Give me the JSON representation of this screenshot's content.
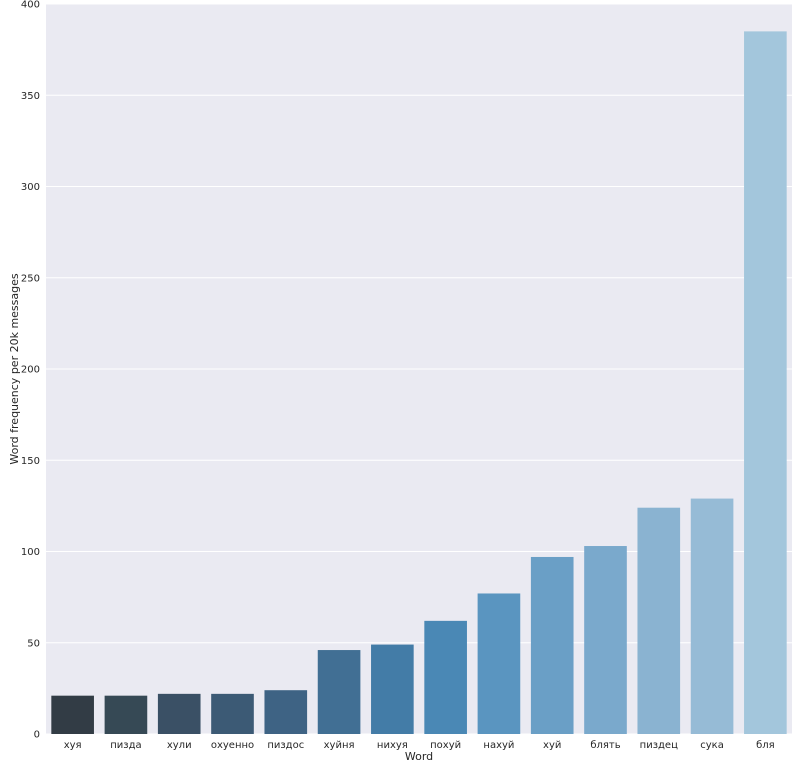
{
  "chart_data": {
    "type": "bar",
    "title": "",
    "xlabel": "Word",
    "ylabel": "Word frequency per 20k messages",
    "categories": [
      "хуя",
      "пизда",
      "хули",
      "охуенно",
      "пиздос",
      "хуйня",
      "нихуя",
      "похуй",
      "нахуй",
      "хуй",
      "блять",
      "пиздец",
      "сука",
      "бля"
    ],
    "values": [
      21,
      21,
      22,
      22,
      24,
      46,
      49,
      62,
      77,
      97,
      103,
      124,
      129,
      385
    ],
    "ylim": [
      0,
      400
    ],
    "yticks": [
      "0",
      "50",
      "100",
      "150",
      "200",
      "250",
      "300",
      "350",
      "400"
    ],
    "grid": true,
    "legend": "none",
    "colors": {
      "background": "#eaeaf2",
      "grid": "#ffffff",
      "bars": [
        "#323c45",
        "#364955",
        "#3a5065",
        "#3c5a75",
        "#3e6384",
        "#416f94",
        "#437ca7",
        "#4a88b5",
        "#5a95c0",
        "#6a9fc6",
        "#7aa9cc",
        "#8ab3d1",
        "#96bbd6",
        "#a3c6dc"
      ]
    }
  }
}
